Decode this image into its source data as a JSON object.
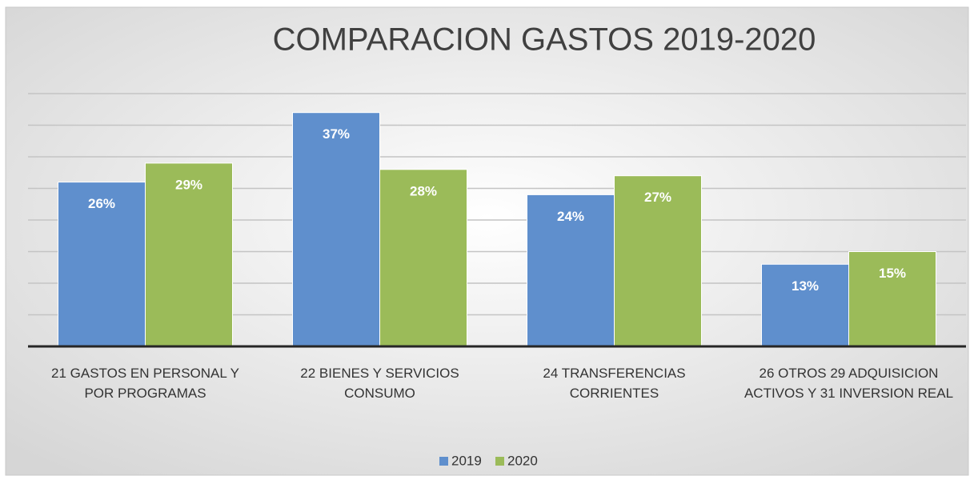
{
  "chart_data": {
    "type": "bar",
    "title": "COMPARACION GASTOS 2019-2020",
    "categories": [
      "21 GASTOS EN PERSONAL Y POR PROGRAMAS",
      "22 BIENES Y SERVICIOS CONSUMO",
      "24 TRANSFERENCIAS CORRIENTES",
      "26 OTROS 29 ADQUISICION ACTIVOS Y 31 INVERSION REAL"
    ],
    "series": [
      {
        "name": "2019",
        "color": "#5f8fcd",
        "values": [
          26,
          37,
          24,
          13
        ],
        "value_labels": [
          "26%",
          "37%",
          "24%",
          "13%"
        ]
      },
      {
        "name": "2020",
        "color": "#9bbb59",
        "values": [
          29,
          28,
          27,
          15
        ],
        "value_labels": [
          "29%",
          "28%",
          "27%",
          "15%"
        ]
      }
    ],
    "ylim": [
      0,
      40
    ],
    "yticks": [
      0,
      5,
      10,
      15,
      20,
      25,
      30,
      35,
      40
    ],
    "grid": true,
    "legend": "bottom"
  }
}
